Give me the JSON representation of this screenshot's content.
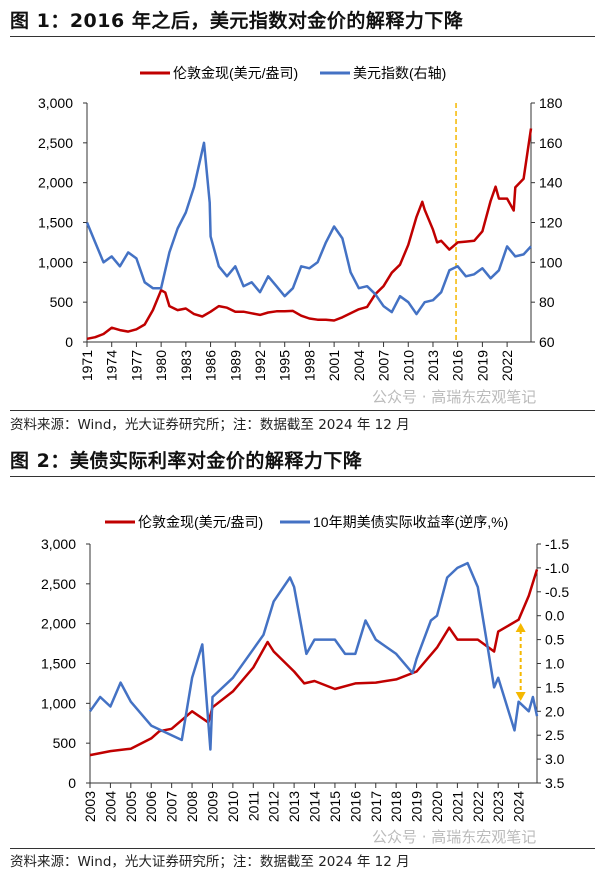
{
  "fig1": {
    "title": "图 1：2016 年之后，美元指数对金价的解释力下降",
    "source": "资料来源：Wind，光大证券研究所；注：数据截至 2024 年 12 月",
    "watermark": "公众号 · 高瑞东宏观笔记"
  },
  "fig2": {
    "title": "图 2：美债实际利率对金价的解释力下降",
    "source": "资料来源：Wind，光大证券研究所；注：数据截至 2024 年 12 月",
    "watermark": "公众号 · 高瑞东宏观笔记"
  },
  "chart_data": [
    {
      "type": "line",
      "legend_position": "top",
      "grid": false,
      "xticks": [
        "1971",
        "1974",
        "1977",
        "1980",
        "1983",
        "1986",
        "1989",
        "1992",
        "1995",
        "1998",
        "2001",
        "2004",
        "2007",
        "2010",
        "2013",
        "2016",
        "2019",
        "2022"
      ],
      "xlim": [
        1971,
        2024.9
      ],
      "y_left": {
        "lim": [
          0,
          3000
        ],
        "ticks": [
          "0",
          "500",
          "1,000",
          "1,500",
          "2,000",
          "2,500",
          "3,000"
        ]
      },
      "y_right": {
        "lim": [
          60,
          180
        ],
        "ticks": [
          "60",
          "80",
          "100",
          "120",
          "140",
          "160",
          "180"
        ]
      },
      "vline": {
        "x": 2015.8,
        "color": "#f5b800",
        "style": "dashed"
      },
      "series": [
        {
          "name": "伦敦金现(美元/盎司)",
          "axis": "left",
          "color": "#c00000",
          "x": [
            1971,
            1972,
            1973,
            1974,
            1975,
            1976,
            1977,
            1978,
            1979,
            1980,
            1980.5,
            1981,
            1982,
            1983,
            1984,
            1985,
            1986,
            1987,
            1988,
            1989,
            1990,
            1991,
            1992,
            1993,
            1994,
            1995,
            1996,
            1997,
            1998,
            1999,
            2000,
            2001,
            2002,
            2003,
            2004,
            2005,
            2006,
            2007,
            2008,
            2009,
            2010,
            2011,
            2011.7,
            2012,
            2013,
            2013.5,
            2014,
            2015,
            2016,
            2017,
            2018,
            2019,
            2020,
            2020.6,
            2021,
            2022,
            2022.8,
            2023,
            2024,
            2024.5,
            2024.9
          ],
          "y": [
            40,
            60,
            100,
            180,
            150,
            130,
            160,
            220,
            400,
            650,
            620,
            450,
            400,
            420,
            350,
            320,
            380,
            450,
            430,
            380,
            380,
            360,
            340,
            370,
            385,
            385,
            390,
            330,
            295,
            280,
            280,
            270,
            310,
            360,
            410,
            440,
            600,
            700,
            870,
            970,
            1220,
            1570,
            1760,
            1660,
            1410,
            1250,
            1270,
            1160,
            1250,
            1260,
            1270,
            1390,
            1770,
            1950,
            1800,
            1800,
            1650,
            1940,
            2050,
            2400,
            2680
          ]
        },
        {
          "name": "美元指数(右轴)",
          "axis": "right",
          "color": "#4472c4",
          "x": [
            1971,
            1972,
            1973,
            1974,
            1975,
            1976,
            1977,
            1978,
            1979,
            1980,
            1981,
            1982,
            1983,
            1984,
            1985.2,
            1985.9,
            1986,
            1987,
            1988,
            1989,
            1990,
            1991,
            1992,
            1993,
            1994,
            1995,
            1996,
            1997,
            1998,
            1999,
            2000,
            2001,
            2002,
            2003,
            2004,
            2005,
            2006,
            2007,
            2008,
            2009,
            2010,
            2011,
            2012,
            2013,
            2014,
            2015,
            2016,
            2017,
            2018,
            2019,
            2020,
            2021,
            2022,
            2023,
            2024,
            2024.9
          ],
          "y": [
            120,
            110,
            100,
            103,
            98,
            105,
            102,
            90,
            87,
            87,
            105,
            117,
            125,
            138,
            160,
            130,
            113,
            98,
            93,
            98,
            88,
            90,
            85,
            93,
            88,
            83,
            87,
            98,
            97,
            100,
            110,
            118,
            112,
            95,
            87,
            88,
            84,
            78,
            75,
            83,
            80,
            74,
            80,
            81,
            85,
            96,
            98,
            93,
            94,
            97,
            92,
            96,
            108,
            103,
            104,
            108
          ]
        }
      ]
    },
    {
      "type": "line",
      "legend_position": "top",
      "grid": false,
      "xticks": [
        "2003",
        "2004",
        "2005",
        "2006",
        "2007",
        "2008",
        "2009",
        "2010",
        "2011",
        "2012",
        "2013",
        "2014",
        "2015",
        "2016",
        "2017",
        "2018",
        "2019",
        "2020",
        "2021",
        "2022",
        "2023",
        "2024"
      ],
      "xlim": [
        2003,
        2024.9
      ],
      "y_left": {
        "lim": [
          0,
          3000
        ],
        "ticks": [
          "0",
          "500",
          "1,000",
          "1,500",
          "2,000",
          "2,500",
          "3,000"
        ]
      },
      "y_right": {
        "lim": [
          -1.5,
          3.5
        ],
        "inverted": true,
        "ticks": [
          "-1.5",
          "-1.0",
          "-0.5",
          "0.0",
          "0.5",
          "1.0",
          "1.5",
          "2.0",
          "2.5",
          "3.0",
          "3.5"
        ]
      },
      "annotation": {
        "type": "double-arrow",
        "color": "#f5b800",
        "x": 2024.1
      },
      "series": [
        {
          "name": "伦敦金现(美元/盎司)",
          "axis": "left",
          "color": "#c00000",
          "x": [
            2003,
            2004,
            2005,
            2006,
            2006.4,
            2007,
            2008,
            2008.8,
            2009,
            2010,
            2011,
            2011.7,
            2012,
            2013,
            2013.5,
            2014,
            2015,
            2016,
            2017,
            2018,
            2019,
            2020,
            2020.6,
            2021,
            2022,
            2022.8,
            2023,
            2024,
            2024.5,
            2024.9
          ],
          "y": [
            350,
            400,
            430,
            560,
            650,
            680,
            900,
            760,
            950,
            1150,
            1450,
            1770,
            1650,
            1400,
            1250,
            1280,
            1180,
            1250,
            1260,
            1300,
            1400,
            1700,
            1950,
            1800,
            1800,
            1650,
            1900,
            2050,
            2350,
            2680
          ]
        },
        {
          "name": "10年期美债实际收益率(逆序,%)",
          "axis": "right",
          "color": "#4472c4",
          "x": [
            2003,
            2003.5,
            2004,
            2004.5,
            2005,
            2006,
            2007,
            2007.5,
            2008,
            2008.5,
            2008.9,
            2009,
            2010,
            2011,
            2011.5,
            2012,
            2012.8,
            2013,
            2013.6,
            2014,
            2015,
            2015.5,
            2016,
            2016.5,
            2017,
            2018,
            2018.8,
            2019,
            2019.7,
            2020,
            2020.5,
            2021,
            2021.5,
            2022,
            2022.5,
            2022.8,
            2023,
            2023.8,
            2024,
            2024.5,
            2024.7,
            2024.9
          ],
          "y": [
            2.0,
            1.7,
            1.9,
            1.4,
            1.8,
            2.3,
            2.5,
            2.6,
            1.3,
            0.6,
            2.8,
            1.7,
            1.3,
            0.7,
            0.4,
            -0.3,
            -0.8,
            -0.6,
            0.8,
            0.5,
            0.5,
            0.8,
            0.8,
            0.1,
            0.5,
            0.8,
            1.2,
            0.9,
            0.1,
            0.0,
            -0.8,
            -1.0,
            -1.1,
            -0.6,
            0.7,
            1.5,
            1.3,
            2.4,
            1.8,
            2.0,
            1.7,
            2.1
          ]
        }
      ]
    }
  ]
}
